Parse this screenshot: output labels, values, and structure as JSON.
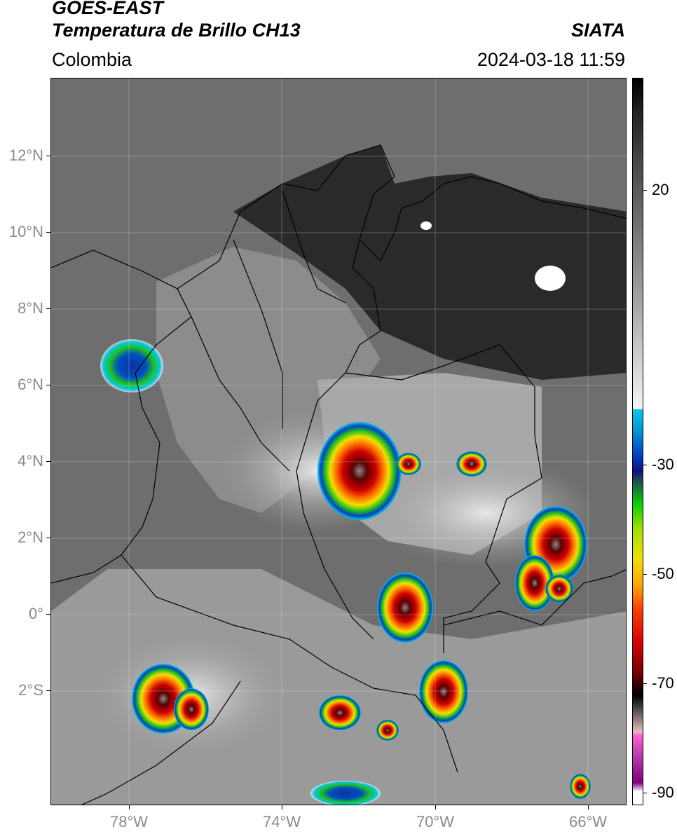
{
  "header": {
    "title_line1": "GOES-EAST",
    "title_line2": "Temperatura de Brillo CH13",
    "region": "Colombia",
    "source": "SIATA",
    "datetime": "2024-03-18 11:59"
  },
  "map": {
    "lon_range": [
      -80,
      -65
    ],
    "lat_range": [
      -5,
      14
    ],
    "lat_ticks": [
      "12°N",
      "10°N",
      "8°N",
      "6°N",
      "4°N",
      "2°N",
      "0°",
      "2°S"
    ],
    "lat_values": [
      12,
      10,
      8,
      6,
      4,
      2,
      0,
      -2
    ],
    "lon_ticks": [
      "78°W",
      "74°W",
      "70°W",
      "66°W"
    ],
    "lon_values": [
      -78,
      -74,
      -70,
      -66
    ],
    "grid": true
  },
  "colorbar": {
    "labels": [
      "20",
      "-30",
      "-50",
      "-70",
      "-90"
    ],
    "values": [
      20,
      -30,
      -50,
      -70,
      -90
    ],
    "range": [
      -92,
      41
    ],
    "units": ""
  },
  "colors": {
    "warm_gray": "#6a6a6a",
    "cold_red": "#c00000",
    "cold_yellow": "#f0e000",
    "cold_green": "#20c020",
    "cold_blue": "#0040c0",
    "cyan": "#00c8e8",
    "magenta": "#d040c0"
  }
}
